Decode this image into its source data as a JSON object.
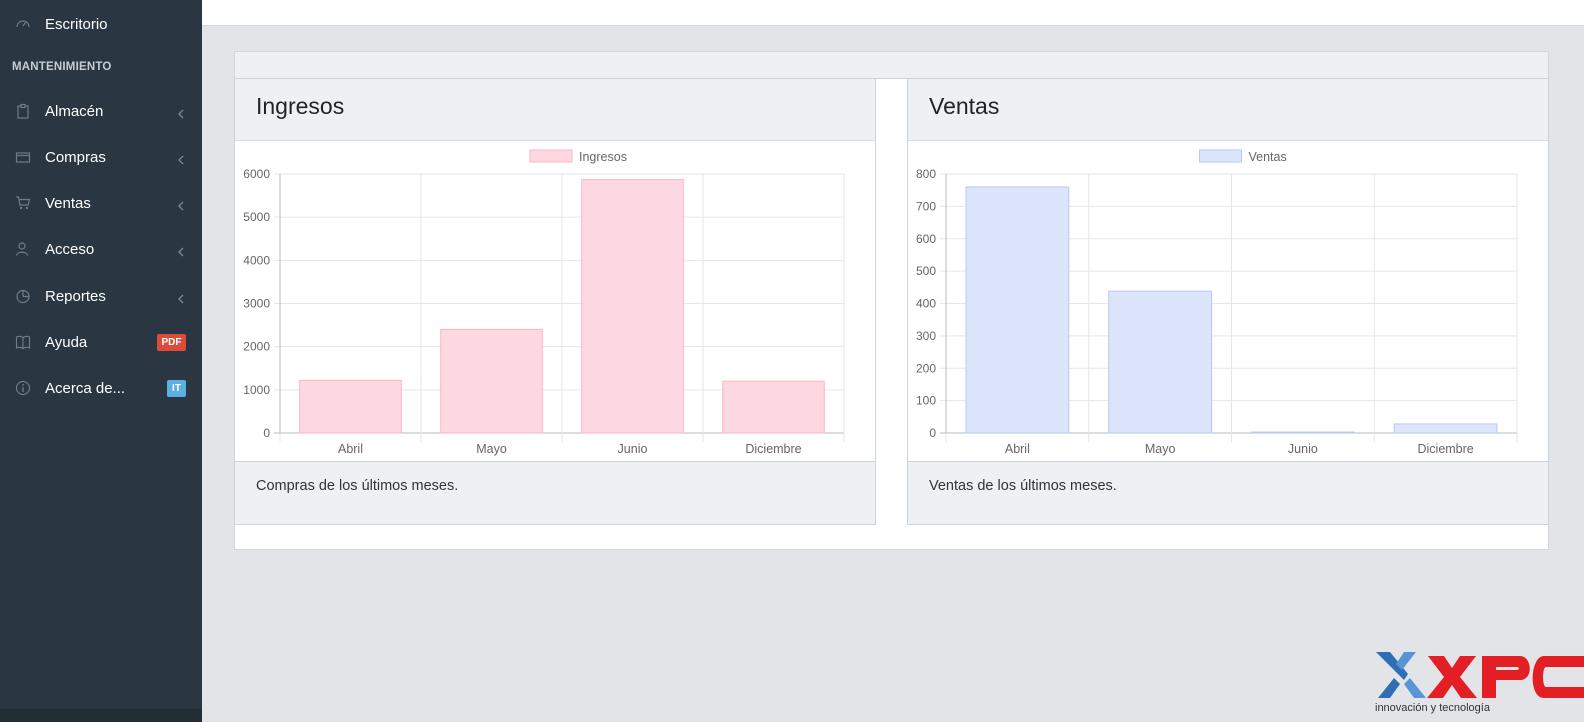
{
  "sidebar": {
    "top_item": {
      "label": "Escritorio",
      "icon": "dashboard-icon"
    },
    "section_header": "MANTENIMIENTO",
    "items": [
      {
        "label": "Almacén",
        "icon": "clipboard-icon",
        "has_chevron": true
      },
      {
        "label": "Compras",
        "icon": "wallet-icon",
        "has_chevron": true
      },
      {
        "label": "Ventas",
        "icon": "cart-icon",
        "has_chevron": true
      },
      {
        "label": "Acceso",
        "icon": "users-icon",
        "has_chevron": true
      },
      {
        "label": "Reportes",
        "icon": "pie-chart-icon",
        "has_chevron": true
      },
      {
        "label": "Ayuda",
        "icon": "book-icon",
        "badge": "PDF"
      },
      {
        "label": "Acerca de...",
        "icon": "info-icon",
        "badge": "IT"
      }
    ]
  },
  "panels": {
    "left": {
      "title": "Ingresos",
      "footer": "Compras de los últimos meses."
    },
    "right": {
      "title": "Ventas",
      "footer": "Ventas de los últimos meses."
    }
  },
  "chart_data": [
    {
      "type": "bar",
      "categories": [
        "Abril",
        "Mayo",
        "Junio",
        "Diciembre"
      ],
      "series": [
        {
          "name": "Ingresos",
          "values": [
            1220,
            2400,
            5870,
            1200
          ]
        }
      ],
      "ylim": [
        0,
        6000
      ],
      "yticks": [
        0,
        1000,
        2000,
        3000,
        4000,
        5000,
        6000
      ],
      "legend": "top-center",
      "grid": true,
      "colors": {
        "fill": "#ffd9e2",
        "stroke": "#ffb1c1"
      }
    },
    {
      "type": "bar",
      "categories": [
        "Abril",
        "Mayo",
        "Junio",
        "Diciembre"
      ],
      "series": [
        {
          "name": "Ventas",
          "values": [
            760,
            438,
            3,
            28
          ]
        }
      ],
      "ylim": [
        0,
        800
      ],
      "yticks": [
        0,
        100,
        200,
        300,
        400,
        500,
        600,
        700,
        800
      ],
      "legend": "top-center",
      "grid": true,
      "colors": {
        "fill": "#dce5fb",
        "stroke": "#b7c9f4"
      }
    }
  ],
  "logo": {
    "text": "XPC",
    "tagline": "innovación y tecnología"
  },
  "colors": {
    "sidebar_bg": "#2a3641",
    "badge_pdf": "#dd4b39",
    "badge_it": "#5ab0de",
    "logo_red": "#e31e24",
    "logo_blue": "#2f6db5"
  }
}
